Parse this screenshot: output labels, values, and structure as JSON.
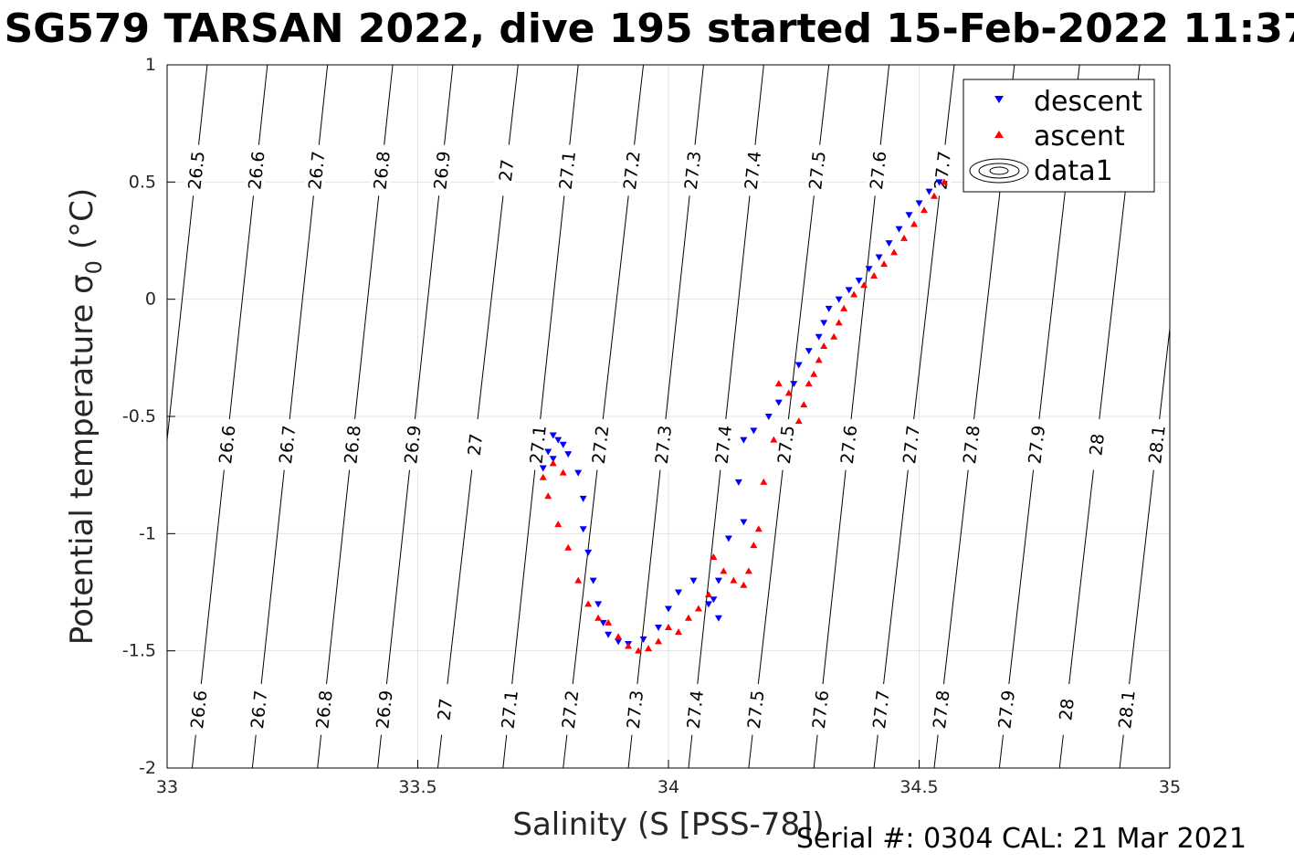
{
  "chart_data": {
    "type": "scatter",
    "title": "SG579 TARSAN 2022, dive 195 started 15-Feb-2022 11:37",
    "xlabel": "Salinity (S [PSS-78])",
    "ylabel": "Potential temperature σ",
    "ylabel_subscript": "0",
    "ylabel_unit": "(°C)",
    "xlim": [
      33,
      35
    ],
    "ylim": [
      -2,
      1
    ],
    "x_ticks": [
      "33",
      "33.5",
      "34",
      "34.5",
      "35"
    ],
    "y_ticks": [
      "1",
      "0.5",
      "0",
      "-0.5",
      "-1",
      "-1.5",
      "-2"
    ],
    "grid": true,
    "legend_position": "top-right",
    "legend": [
      "descent",
      "ascent",
      "data1"
    ],
    "footer": "Serial #: 0304  CAL: 21 Mar 2021",
    "contour_labels": {
      "top": [
        "26.5",
        "26.6",
        "26.7",
        "26.8",
        "26.9",
        "27",
        "27.1",
        "27.2",
        "27.3",
        "27.4",
        "27.5",
        "27.6",
        "27.7"
      ],
      "middle": [
        "26.6",
        "26.7",
        "26.8",
        "26.9",
        "27",
        "27.1",
        "27.2",
        "27.3",
        "27.4",
        "27.5",
        "27.6",
        "27.7",
        "27.8",
        "27.9",
        "28",
        "28.1"
      ],
      "bottom": [
        "26.6",
        "26.7",
        "26.8",
        "26.9",
        "27",
        "27.1",
        "27.2",
        "27.3",
        "27.4",
        "27.5",
        "27.6",
        "27.7",
        "27.8",
        "27.9",
        "28",
        "28.1"
      ]
    },
    "contours": [
      {
        "label": "26.5",
        "bottom_x": 32.93,
        "top_x": 33.08
      },
      {
        "label": "26.6",
        "bottom_x": 33.05,
        "top_x": 33.2
      },
      {
        "label": "26.7",
        "bottom_x": 33.17,
        "top_x": 33.32
      },
      {
        "label": "26.8",
        "bottom_x": 33.3,
        "top_x": 33.45
      },
      {
        "label": "26.9",
        "bottom_x": 33.42,
        "top_x": 33.57
      },
      {
        "label": "27",
        "bottom_x": 33.54,
        "top_x": 33.7
      },
      {
        "label": "27.1",
        "bottom_x": 33.67,
        "top_x": 33.82
      },
      {
        "label": "27.2",
        "bottom_x": 33.79,
        "top_x": 33.95
      },
      {
        "label": "27.3",
        "bottom_x": 33.92,
        "top_x": 34.07
      },
      {
        "label": "27.4",
        "bottom_x": 34.04,
        "top_x": 34.19
      },
      {
        "label": "27.5",
        "bottom_x": 34.16,
        "top_x": 34.32
      },
      {
        "label": "27.6",
        "bottom_x": 34.29,
        "top_x": 34.44
      },
      {
        "label": "27.7",
        "bottom_x": 34.41,
        "top_x": 34.57
      },
      {
        "label": "27.8",
        "bottom_x": 34.53,
        "top_x": 34.69
      },
      {
        "label": "27.9",
        "bottom_x": 34.66,
        "top_x": 34.82
      },
      {
        "label": "28",
        "bottom_x": 34.78,
        "top_x": 34.94
      },
      {
        "label": "28.1",
        "bottom_x": 34.9,
        "top_x": 35.06
      }
    ],
    "series": [
      {
        "name": "descent",
        "marker": "triangle-down",
        "color": "#0000ff",
        "points": [
          [
            34.54,
            0.5
          ],
          [
            34.52,
            0.46
          ],
          [
            34.5,
            0.41
          ],
          [
            34.48,
            0.36
          ],
          [
            34.46,
            0.3
          ],
          [
            34.44,
            0.24
          ],
          [
            34.42,
            0.18
          ],
          [
            34.4,
            0.13
          ],
          [
            34.38,
            0.08
          ],
          [
            34.36,
            0.04
          ],
          [
            34.34,
            0.0
          ],
          [
            34.32,
            -0.04
          ],
          [
            34.31,
            -0.1
          ],
          [
            34.3,
            -0.16
          ],
          [
            34.28,
            -0.22
          ],
          [
            34.26,
            -0.28
          ],
          [
            34.25,
            -0.36
          ],
          [
            34.22,
            -0.44
          ],
          [
            34.2,
            -0.5
          ],
          [
            34.17,
            -0.56
          ],
          [
            34.15,
            -0.6
          ],
          [
            34.14,
            -0.78
          ],
          [
            34.15,
            -0.95
          ],
          [
            34.12,
            -1.02
          ],
          [
            34.1,
            -1.2
          ],
          [
            34.09,
            -1.28
          ],
          [
            34.1,
            -1.36
          ],
          [
            34.08,
            -1.3
          ],
          [
            34.05,
            -1.2
          ],
          [
            34.02,
            -1.25
          ],
          [
            34.0,
            -1.32
          ],
          [
            33.98,
            -1.4
          ],
          [
            33.95,
            -1.45
          ],
          [
            33.92,
            -1.47
          ],
          [
            33.9,
            -1.46
          ],
          [
            33.88,
            -1.43
          ],
          [
            33.87,
            -1.38
          ],
          [
            33.86,
            -1.3
          ],
          [
            33.85,
            -1.2
          ],
          [
            33.84,
            -1.08
          ],
          [
            33.83,
            -0.98
          ],
          [
            33.83,
            -0.85
          ],
          [
            33.82,
            -0.74
          ],
          [
            33.8,
            -0.66
          ],
          [
            33.78,
            -0.6
          ],
          [
            33.77,
            -0.58
          ],
          [
            33.76,
            -0.65
          ],
          [
            33.75,
            -0.72
          ],
          [
            33.77,
            -0.68
          ],
          [
            33.79,
            -0.62
          ]
        ]
      },
      {
        "name": "ascent",
        "marker": "triangle-up",
        "color": "#ff0000",
        "points": [
          [
            34.55,
            0.5
          ],
          [
            34.53,
            0.44
          ],
          [
            34.51,
            0.38
          ],
          [
            34.49,
            0.32
          ],
          [
            34.47,
            0.26
          ],
          [
            34.45,
            0.2
          ],
          [
            34.43,
            0.15
          ],
          [
            34.41,
            0.1
          ],
          [
            34.39,
            0.06
          ],
          [
            34.37,
            0.02
          ],
          [
            34.35,
            -0.04
          ],
          [
            34.34,
            -0.1
          ],
          [
            34.33,
            -0.16
          ],
          [
            34.31,
            -0.2
          ],
          [
            34.3,
            -0.26
          ],
          [
            34.29,
            -0.32
          ],
          [
            34.28,
            -0.36
          ],
          [
            34.27,
            -0.45
          ],
          [
            34.26,
            -0.52
          ],
          [
            34.24,
            -0.4
          ],
          [
            34.22,
            -0.36
          ],
          [
            34.21,
            -0.6
          ],
          [
            34.19,
            -0.78
          ],
          [
            34.18,
            -0.98
          ],
          [
            34.17,
            -1.05
          ],
          [
            34.16,
            -1.16
          ],
          [
            34.15,
            -1.22
          ],
          [
            34.13,
            -1.2
          ],
          [
            34.11,
            -1.16
          ],
          [
            34.09,
            -1.1
          ],
          [
            34.08,
            -1.26
          ],
          [
            34.06,
            -1.32
          ],
          [
            34.04,
            -1.36
          ],
          [
            34.02,
            -1.42
          ],
          [
            34.0,
            -1.4
          ],
          [
            33.98,
            -1.46
          ],
          [
            33.96,
            -1.49
          ],
          [
            33.94,
            -1.5
          ],
          [
            33.92,
            -1.48
          ],
          [
            33.9,
            -1.44
          ],
          [
            33.88,
            -1.38
          ],
          [
            33.86,
            -1.36
          ],
          [
            33.84,
            -1.3
          ],
          [
            33.82,
            -1.2
          ],
          [
            33.8,
            -1.06
          ],
          [
            33.78,
            -0.96
          ],
          [
            33.76,
            -0.84
          ],
          [
            33.75,
            -0.76
          ],
          [
            33.77,
            -0.7
          ],
          [
            33.79,
            -0.74
          ]
        ]
      }
    ]
  }
}
